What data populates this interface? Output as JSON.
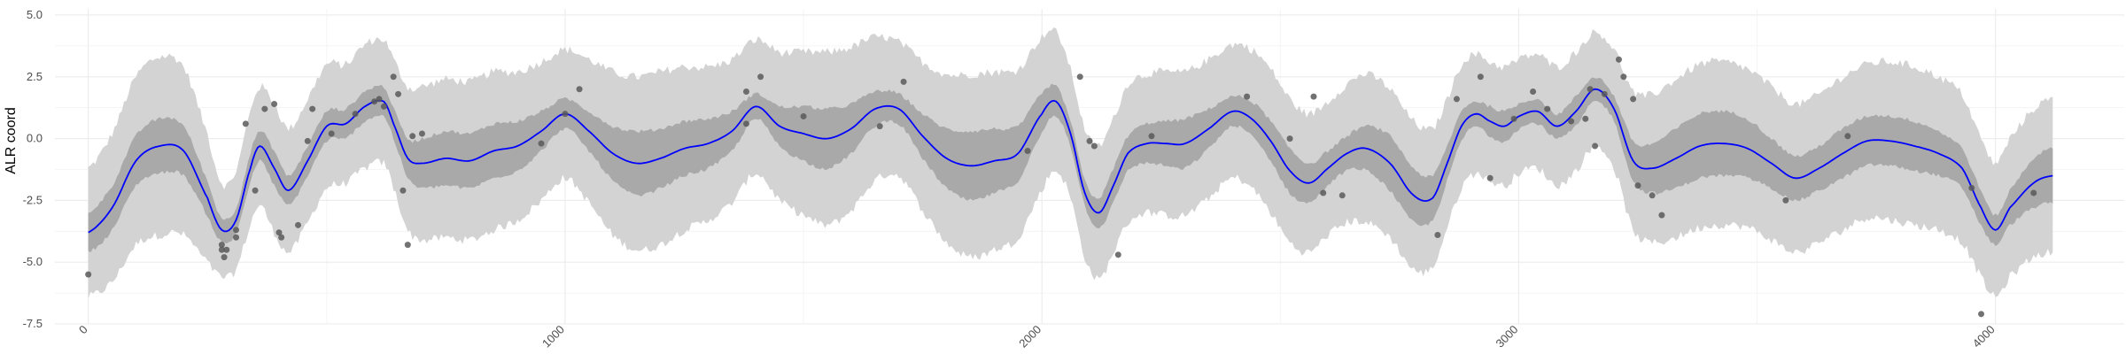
{
  "chart_data": {
    "type": "line",
    "title": "",
    "xlabel": "",
    "ylabel": "ALR coord",
    "xlim": [
      -70,
      4270
    ],
    "ylim": [
      -7.5,
      5.25
    ],
    "x_ticks": [
      0,
      1000,
      2000,
      3000,
      4000
    ],
    "x_tick_labels": [
      "0",
      "1000",
      "2000",
      "3000",
      "4000"
    ],
    "y_ticks": [
      -7.5,
      -5.0,
      -2.5,
      0.0,
      2.5,
      5.0
    ],
    "y_tick_labels": [
      "-7.5",
      "-5.0",
      "-2.5",
      "0.0",
      "2.5",
      "5.0"
    ],
    "grid": true,
    "series": [
      {
        "kind": "mean_line",
        "color": "#0000ff",
        "x": [
          0,
          50,
          100,
          150,
          200,
          250,
          280,
          310,
          340,
          360,
          390,
          420,
          460,
          500,
          540,
          580,
          620,
          640,
          670,
          700,
          750,
          800,
          850,
          900,
          950,
          1000,
          1050,
          1100,
          1150,
          1200,
          1250,
          1300,
          1350,
          1400,
          1450,
          1500,
          1550,
          1600,
          1650,
          1700,
          1750,
          1800,
          1850,
          1900,
          1950,
          2000,
          2030,
          2060,
          2090,
          2120,
          2150,
          2180,
          2220,
          2260,
          2300,
          2350,
          2400,
          2440,
          2480,
          2520,
          2560,
          2600,
          2640,
          2680,
          2730,
          2780,
          2820,
          2850,
          2880,
          2910,
          2940,
          2970,
          3000,
          3040,
          3080,
          3120,
          3160,
          3200,
          3240,
          3280,
          3330,
          3380,
          3430,
          3480,
          3530,
          3580,
          3630,
          3680,
          3730,
          3780,
          3830,
          3880,
          3930,
          3970,
          4000,
          4030,
          4080,
          4120
        ],
        "y": [
          -3.8,
          -2.8,
          -0.9,
          -0.3,
          -0.5,
          -2.4,
          -3.7,
          -3.3,
          -1.2,
          -0.3,
          -1.2,
          -2.1,
          -0.9,
          0.5,
          0.6,
          1.3,
          1.5,
          0.6,
          -0.8,
          -1.0,
          -0.8,
          -0.9,
          -0.5,
          -0.3,
          0.3,
          1.0,
          0.3,
          -0.6,
          -1.0,
          -0.8,
          -0.4,
          -0.2,
          0.3,
          1.3,
          0.5,
          0.2,
          0.0,
          0.4,
          1.2,
          1.2,
          0.1,
          -0.8,
          -1.1,
          -0.9,
          -0.6,
          1.0,
          1.5,
          0.2,
          -2.2,
          -3.0,
          -1.9,
          -0.6,
          -0.2,
          -0.2,
          -0.2,
          0.4,
          1.1,
          0.8,
          -0.1,
          -1.3,
          -1.8,
          -1.2,
          -0.6,
          -0.4,
          -1.0,
          -2.3,
          -2.4,
          -1.0,
          0.5,
          1.0,
          0.7,
          0.5,
          0.9,
          1.1,
          0.5,
          1.1,
          2.0,
          1.2,
          -0.9,
          -1.2,
          -0.8,
          -0.3,
          -0.2,
          -0.4,
          -1.0,
          -1.6,
          -1.2,
          -0.6,
          -0.1,
          -0.1,
          -0.3,
          -0.6,
          -1.2,
          -2.8,
          -3.7,
          -2.8,
          -1.8,
          -1.5
        ]
      },
      {
        "kind": "inner_band",
        "color": "#a9a9a9",
        "half_width": [
          0.8,
          0.9,
          1.0,
          1.1,
          1.0,
          0.7,
          0.5,
          0.5,
          0.6,
          0.6,
          0.7,
          0.6,
          0.6,
          0.6,
          0.6,
          0.6,
          0.6,
          0.6,
          0.8,
          1.0,
          1.1,
          1.1,
          1.1,
          1.0,
          0.8,
          0.6,
          0.8,
          1.1,
          1.3,
          1.2,
          1.1,
          1.0,
          0.8,
          0.5,
          0.8,
          1.1,
          1.2,
          1.0,
          0.7,
          0.6,
          0.9,
          1.2,
          1.4,
          1.3,
          1.1,
          0.8,
          0.6,
          0.5,
          0.5,
          0.6,
          0.7,
          0.7,
          0.8,
          0.9,
          1.0,
          0.8,
          0.6,
          0.7,
          0.8,
          0.9,
          0.8,
          0.7,
          0.7,
          0.9,
          1.1,
          1.1,
          0.9,
          0.7,
          0.6,
          0.5,
          0.6,
          0.6,
          0.5,
          0.5,
          0.5,
          0.6,
          0.5,
          0.5,
          0.8,
          1.0,
          1.2,
          1.3,
          1.3,
          1.2,
          1.0,
          0.9,
          0.9,
          1.0,
          1.0,
          1.0,
          1.0,
          0.9,
          0.8,
          0.7,
          0.6,
          0.7,
          1.0,
          1.1
        ]
      },
      {
        "kind": "outer_band",
        "color": "#d3d3d3",
        "half_width": [
          2.6,
          3.0,
          3.4,
          3.6,
          3.4,
          2.6,
          1.9,
          2.0,
          2.3,
          2.4,
          2.6,
          2.5,
          2.5,
          2.5,
          2.4,
          2.5,
          2.5,
          2.6,
          2.9,
          3.1,
          3.2,
          3.2,
          3.2,
          3.0,
          2.8,
          2.6,
          2.9,
          3.3,
          3.5,
          3.5,
          3.3,
          3.1,
          2.9,
          2.7,
          3.0,
          3.3,
          3.5,
          3.3,
          2.9,
          2.7,
          3.0,
          3.4,
          3.7,
          3.6,
          3.4,
          3.1,
          2.8,
          2.6,
          2.6,
          2.7,
          2.7,
          2.8,
          2.8,
          2.9,
          2.9,
          2.8,
          2.7,
          2.8,
          2.9,
          2.9,
          2.8,
          2.7,
          2.8,
          3.0,
          3.0,
          3.0,
          2.8,
          2.6,
          2.5,
          2.4,
          2.4,
          2.4,
          2.3,
          2.3,
          2.4,
          2.4,
          2.3,
          2.4,
          2.8,
          3.0,
          3.2,
          3.3,
          3.3,
          3.2,
          3.1,
          3.0,
          3.0,
          3.1,
          3.1,
          3.2,
          3.2,
          3.1,
          3.0,
          2.8,
          2.7,
          2.8,
          3.0,
          3.1
        ]
      },
      {
        "kind": "points",
        "color": "#595959",
        "points": [
          [
            0,
            -5.5
          ],
          [
            280,
            -4.3
          ],
          [
            280,
            -4.5
          ],
          [
            285,
            -4.8
          ],
          [
            290,
            -4.5
          ],
          [
            310,
            -4.0
          ],
          [
            310,
            -3.7
          ],
          [
            330,
            0.6
          ],
          [
            350,
            -2.1
          ],
          [
            370,
            1.2
          ],
          [
            390,
            1.4
          ],
          [
            400,
            -3.8
          ],
          [
            405,
            -4.0
          ],
          [
            440,
            -3.5
          ],
          [
            460,
            -0.1
          ],
          [
            470,
            1.2
          ],
          [
            510,
            0.2
          ],
          [
            560,
            1.0
          ],
          [
            600,
            1.5
          ],
          [
            610,
            1.6
          ],
          [
            620,
            1.3
          ],
          [
            640,
            2.5
          ],
          [
            650,
            1.8
          ],
          [
            660,
            -2.1
          ],
          [
            670,
            -4.3
          ],
          [
            680,
            0.1
          ],
          [
            700,
            0.2
          ],
          [
            950,
            -0.2
          ],
          [
            1000,
            1.0
          ],
          [
            1030,
            2.0
          ],
          [
            1380,
            1.9
          ],
          [
            1380,
            0.6
          ],
          [
            1410,
            2.5
          ],
          [
            1500,
            0.9
          ],
          [
            1660,
            0.5
          ],
          [
            1710,
            2.3
          ],
          [
            1970,
            -0.5
          ],
          [
            2080,
            2.5
          ],
          [
            2100,
            -0.1
          ],
          [
            2110,
            -0.3
          ],
          [
            2160,
            -4.7
          ],
          [
            2230,
            0.1
          ],
          [
            2430,
            1.7
          ],
          [
            2520,
            0.0
          ],
          [
            2570,
            1.7
          ],
          [
            2590,
            -2.2
          ],
          [
            2630,
            -2.3
          ],
          [
            2830,
            -3.9
          ],
          [
            2870,
            1.6
          ],
          [
            2920,
            2.5
          ],
          [
            2940,
            -1.6
          ],
          [
            2990,
            0.8
          ],
          [
            3030,
            1.9
          ],
          [
            3060,
            1.2
          ],
          [
            3110,
            0.7
          ],
          [
            3140,
            0.8
          ],
          [
            3150,
            2.0
          ],
          [
            3160,
            -0.3
          ],
          [
            3180,
            1.8
          ],
          [
            3210,
            3.2
          ],
          [
            3220,
            2.5
          ],
          [
            3240,
            1.6
          ],
          [
            3250,
            -1.9
          ],
          [
            3280,
            -2.3
          ],
          [
            3300,
            -3.1
          ],
          [
            3560,
            -2.5
          ],
          [
            3690,
            0.1
          ],
          [
            3950,
            -2.0
          ],
          [
            3970,
            -7.1
          ],
          [
            4080,
            -2.2
          ]
        ]
      }
    ]
  }
}
